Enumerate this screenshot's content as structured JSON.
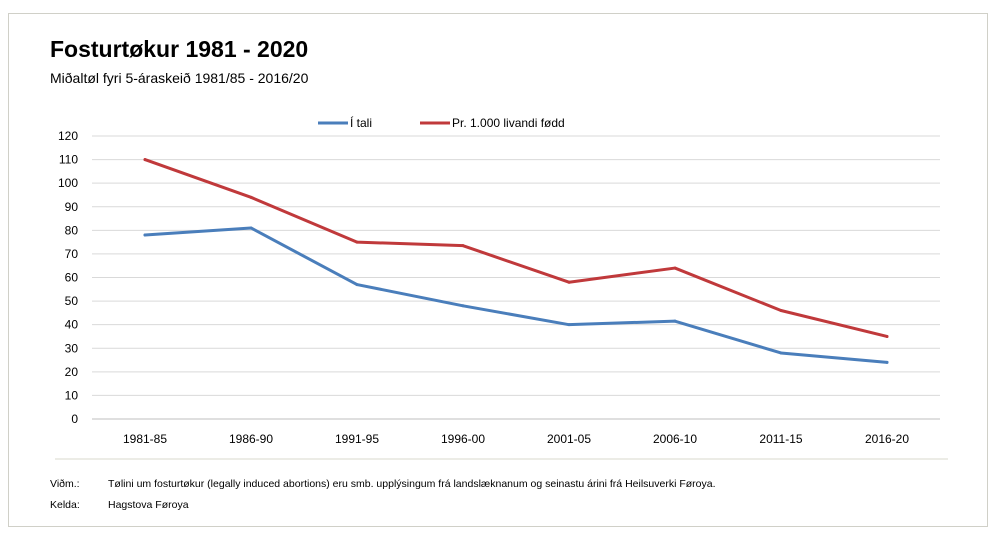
{
  "chart_data": {
    "type": "line",
    "title": "Fosturtøkur 1981 - 2020",
    "subtitle": "Miðaltøl fyri 5-áraskeið 1981/85 - 2016/20",
    "categories": [
      "1981-85",
      "1986-90",
      "1991-95",
      "1996-00",
      "2001-05",
      "2006-10",
      "2011-15",
      "2016-20"
    ],
    "series": [
      {
        "name": "Í tali",
        "color": "#4a7ebb",
        "values": [
          78,
          81,
          57,
          48,
          40,
          41.5,
          28,
          24
        ]
      },
      {
        "name": "Pr. 1.000 livandi fødd",
        "color": "#c0393b",
        "values": [
          110,
          94,
          75,
          73.5,
          58,
          64,
          46,
          35
        ]
      }
    ],
    "ylim": [
      0,
      120
    ],
    "yticks": [
      0,
      10,
      20,
      30,
      40,
      50,
      60,
      70,
      80,
      90,
      100,
      110,
      120
    ],
    "grid": true,
    "legend_position": "top-center"
  },
  "notes": {
    "remark_label": "Viðm.:",
    "remark_text": "Tølini um fosturtøkur (legally induced abortions) eru smb. upplýsingum frá landslæknanum og seinastu árini frá Heilsuverki Føroya.",
    "source_label": "Kelda:",
    "source_text": "Hagstova Føroya"
  }
}
